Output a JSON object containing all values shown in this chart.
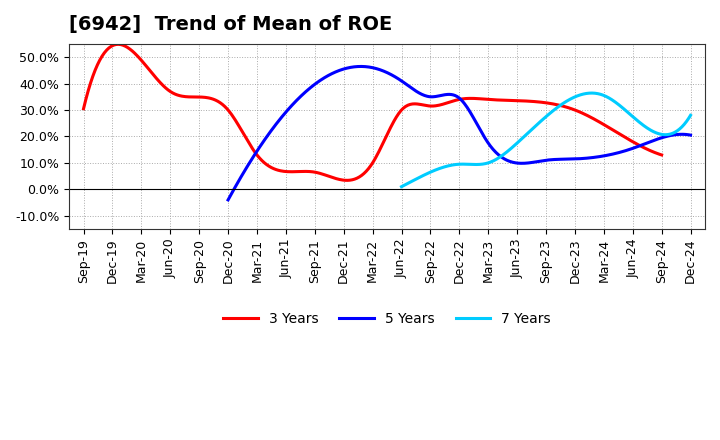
{
  "title": "[6942]  Trend of Mean of ROE",
  "ylabel": "",
  "xlabel": "",
  "ylim": [
    -0.15,
    0.55
  ],
  "yticks": [
    -0.1,
    0.0,
    0.1,
    0.2,
    0.3,
    0.4,
    0.5
  ],
  "x_labels": [
    "Sep-19",
    "Dec-19",
    "Mar-20",
    "Jun-20",
    "Sep-20",
    "Dec-20",
    "Mar-21",
    "Jun-21",
    "Sep-21",
    "Dec-21",
    "Mar-22",
    "Jun-22",
    "Sep-22",
    "Dec-22",
    "Mar-23",
    "Jun-23",
    "Sep-23",
    "Dec-23",
    "Mar-24",
    "Jun-24",
    "Sep-24",
    "Dec-24"
  ],
  "series": {
    "3 Years": {
      "color": "#FF0000",
      "data": [
        [
          "Sep-19",
          0.305
        ],
        [
          "Dec-19",
          null
        ],
        [
          "Mar-20",
          0.488
        ],
        [
          "Jun-20",
          0.37
        ],
        [
          "Sep-20",
          null
        ],
        [
          "Dec-20",
          0.3
        ],
        [
          "Mar-21",
          0.13
        ],
        [
          "Jun-21",
          null
        ],
        [
          "Sep-21",
          0.065
        ],
        [
          "Dec-21",
          null
        ],
        [
          "Mar-22",
          0.1
        ],
        [
          "Jun-22",
          0.3
        ],
        [
          "Sep-22",
          0.315
        ],
        [
          "Dec-22",
          0.34
        ],
        [
          "Mar-23",
          0.34
        ],
        [
          "Jun-23",
          null
        ],
        [
          "Sep-23",
          null
        ],
        [
          "Dec-23",
          0.3
        ],
        [
          "Mar-24",
          null
        ],
        [
          "Jun-24",
          0.18
        ],
        [
          "Sep-24",
          0.13
        ],
        [
          "Dec-24",
          null
        ]
      ]
    },
    "5 Years": {
      "color": "#0000FF",
      "data": [
        [
          "Sep-19",
          null
        ],
        [
          "Dec-19",
          null
        ],
        [
          "Mar-20",
          null
        ],
        [
          "Jun-20",
          null
        ],
        [
          "Sep-20",
          null
        ],
        [
          "Dec-20",
          -0.04
        ],
        [
          "Mar-21",
          null
        ],
        [
          "Jun-21",
          null
        ],
        [
          "Sep-21",
          null
        ],
        [
          "Dec-21",
          0.455
        ],
        [
          "Mar-22",
          0.46
        ],
        [
          "Jun-22",
          0.41
        ],
        [
          "Sep-22",
          0.35
        ],
        [
          "Dec-22",
          0.345
        ],
        [
          "Mar-23",
          0.175
        ],
        [
          "Jun-23",
          null
        ],
        [
          "Sep-23",
          0.11
        ],
        [
          "Dec-23",
          0.115
        ],
        [
          "Mar-24",
          null
        ],
        [
          "Jun-24",
          0.155
        ],
        [
          "Sep-24",
          0.195
        ],
        [
          "Dec-24",
          0.205
        ]
      ]
    },
    "7 Years": {
      "color": "#00CCFF",
      "data": [
        [
          "Mar-22",
          null
        ],
        [
          "Jun-22",
          0.01
        ],
        [
          "Sep-22",
          0.065
        ],
        [
          "Dec-22",
          0.095
        ],
        [
          "Mar-23",
          0.1
        ],
        [
          "Jun-23",
          0.175
        ],
        [
          "Sep-23",
          0.275
        ],
        [
          "Dec-23",
          null
        ],
        [
          "Mar-24",
          0.355
        ],
        [
          "Jun-24",
          0.275
        ],
        [
          "Sep-24",
          null
        ],
        [
          "Dec-24",
          0.28
        ]
      ]
    },
    "10 Years": {
      "color": "#008000",
      "data": []
    }
  },
  "background_color": "#ffffff",
  "grid_color": "#aaaaaa",
  "title_fontsize": 14,
  "tick_fontsize": 9,
  "legend_fontsize": 10,
  "line_width": 2.2
}
